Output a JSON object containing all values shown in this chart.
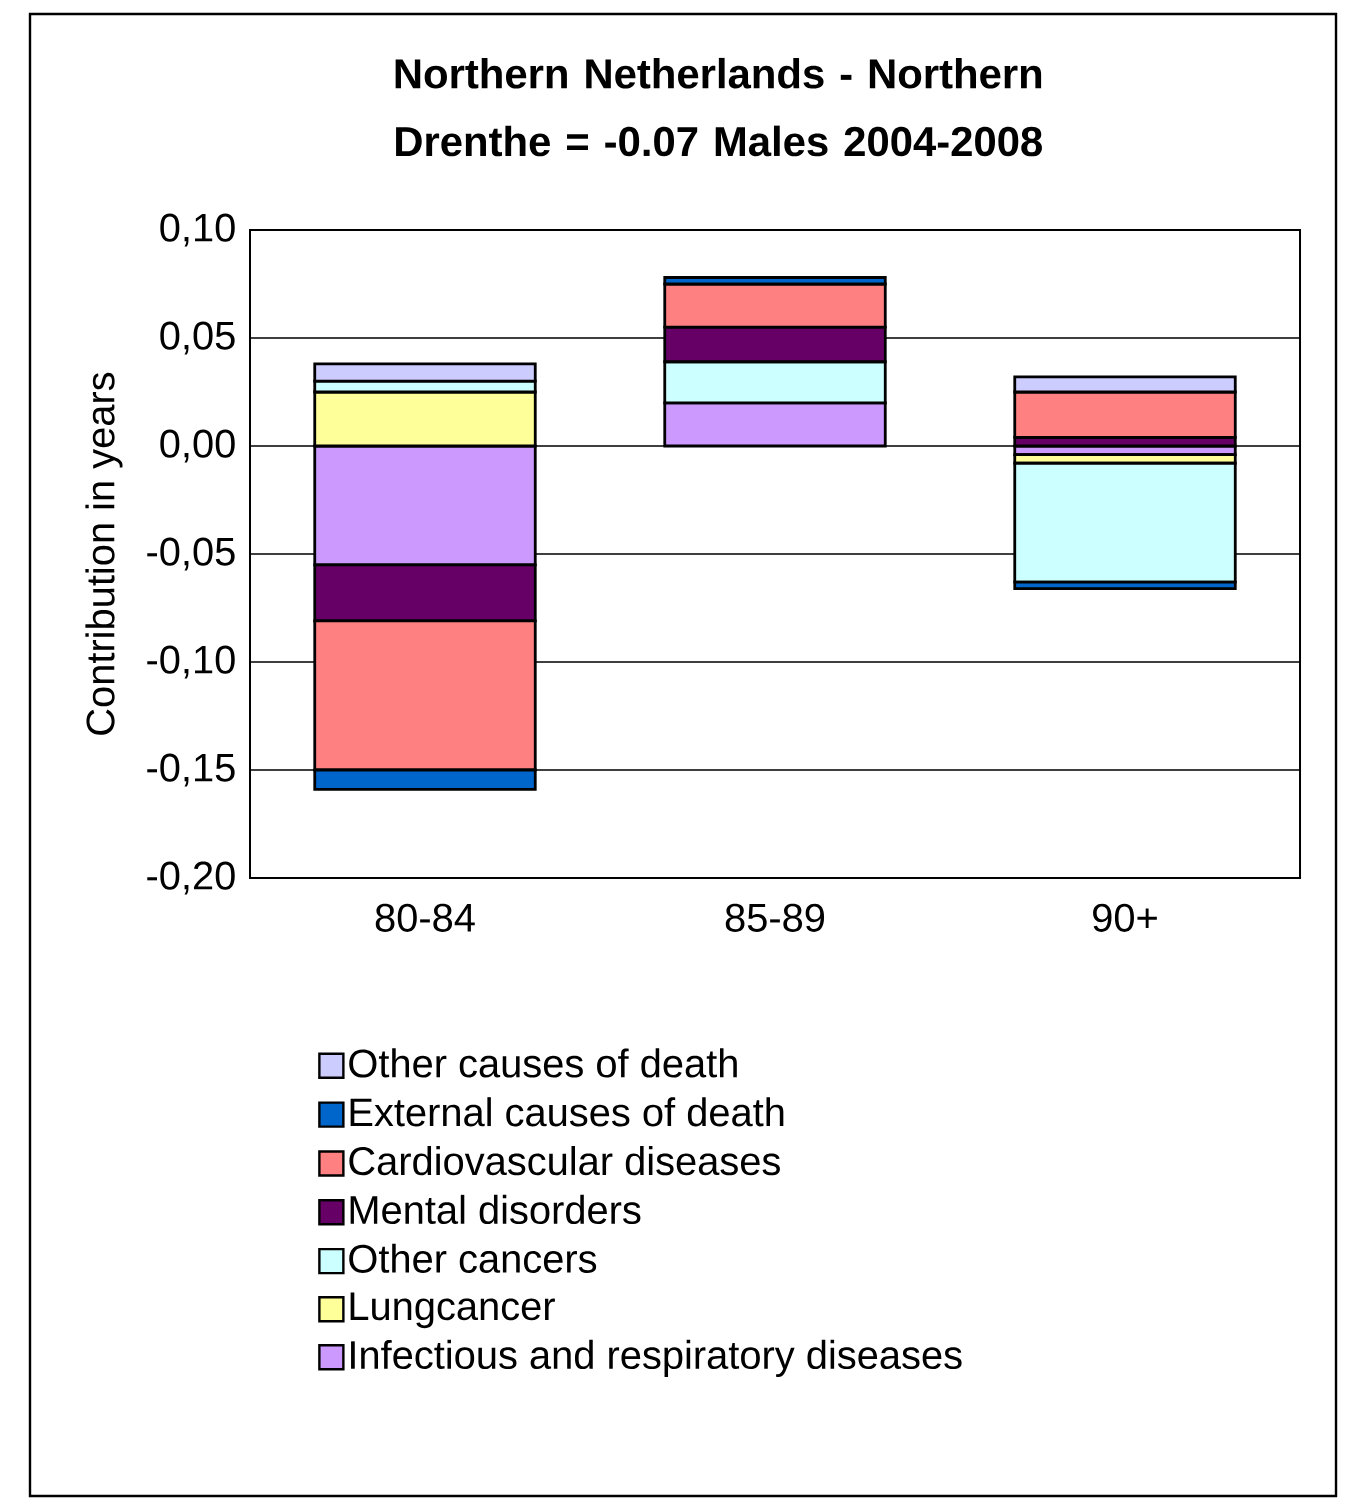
{
  "chart_data": {
    "type": "bar",
    "stacked": true,
    "title": "Northern Netherlands - Northern Drenthe = -0.07 Males 2004-2008",
    "ylabel": "Contribution in years",
    "categories": [
      "80-84",
      "85-89",
      "90+"
    ],
    "series": [
      {
        "name": "Infectious and respiratory diseases",
        "color": "#cc99ff",
        "values": [
          -0.055,
          0.02,
          -0.004
        ]
      },
      {
        "name": "Lungcancer",
        "color": "#ffff99",
        "values": [
          0.025,
          0,
          -0.004
        ]
      },
      {
        "name": "Other cancers",
        "color": "#ccffff",
        "values": [
          0.005,
          0.019,
          -0.055
        ]
      },
      {
        "name": "Mental disorders",
        "color": "#660066",
        "values": [
          -0.026,
          0.016,
          0.004
        ]
      },
      {
        "name": "Cardiovascular diseases",
        "color": "#ff8080",
        "values": [
          -0.069,
          0.02,
          0.021
        ]
      },
      {
        "name": "External causes of death",
        "color": "#0066cc",
        "values": [
          -0.009,
          0.003,
          -0.003
        ]
      },
      {
        "name": "Other causes of death",
        "color": "#ccccff",
        "values": [
          0.008,
          0,
          0.007
        ]
      }
    ],
    "ylim": [
      -0.2,
      0.1
    ],
    "yticks": [
      {
        "value": -0.2,
        "label": "-0,20"
      },
      {
        "value": -0.15,
        "label": "-0,15"
      },
      {
        "value": -0.1,
        "label": "-0,10"
      },
      {
        "value": -0.05,
        "label": "-0,05"
      },
      {
        "value": 0,
        "label": "0,00"
      },
      {
        "value": 0.05,
        "label": "0,05"
      },
      {
        "value": 0.1,
        "label": "0,10"
      }
    ],
    "grid": "y",
    "legend": "bottom"
  }
}
